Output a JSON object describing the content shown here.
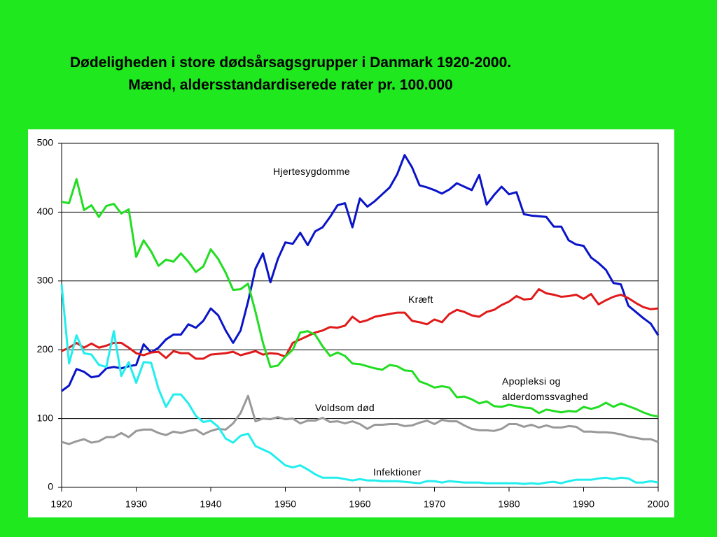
{
  "chart_data": {
    "type": "line",
    "title": "Dødeligheden i store dødsårsagsgrupper i Danmark 1920-2000. Mænd, aldersstandardiserede rater pr. 100.000",
    "x": [
      1920,
      1921,
      1922,
      1923,
      1924,
      1925,
      1926,
      1927,
      1928,
      1929,
      1930,
      1931,
      1932,
      1933,
      1934,
      1935,
      1936,
      1937,
      1938,
      1939,
      1940,
      1941,
      1942,
      1943,
      1944,
      1945,
      1946,
      1947,
      1948,
      1949,
      1950,
      1951,
      1952,
      1953,
      1954,
      1955,
      1956,
      1957,
      1958,
      1959,
      1960,
      1961,
      1962,
      1963,
      1964,
      1965,
      1966,
      1967,
      1968,
      1969,
      1970,
      1971,
      1972,
      1973,
      1974,
      1975,
      1976,
      1977,
      1978,
      1979,
      1980,
      1981,
      1982,
      1983,
      1984,
      1985,
      1986,
      1987,
      1988,
      1989,
      1990,
      1991,
      1992,
      1993,
      1994,
      1995,
      1996,
      1997,
      1998,
      1999,
      2000
    ],
    "series": [
      {
        "name": "Hjertesygdomme",
        "color": "#0a14c8",
        "values": [
          140,
          148,
          172,
          168,
          160,
          162,
          173,
          175,
          173,
          176,
          178,
          208,
          196,
          203,
          215,
          222,
          222,
          237,
          232,
          242,
          260,
          250,
          228,
          210,
          228,
          270,
          318,
          340,
          298,
          332,
          356,
          354,
          370,
          352,
          372,
          378,
          393,
          410,
          413,
          378,
          420,
          408,
          416,
          426,
          436,
          455,
          483,
          465,
          439,
          436,
          432,
          427,
          433,
          442,
          437,
          432,
          454,
          411,
          425,
          437,
          426,
          429,
          397,
          395,
          394,
          393,
          379,
          379,
          359,
          353,
          351,
          334,
          326,
          316,
          297,
          295,
          264,
          255,
          246,
          238,
          221
        ]
      },
      {
        "name": "Kræft",
        "color": "#e01a1a",
        "values": [
          198,
          203,
          210,
          203,
          209,
          203,
          206,
          210,
          210,
          203,
          195,
          192,
          196,
          197,
          188,
          198,
          195,
          195,
          187,
          187,
          193,
          194,
          195,
          197,
          192,
          195,
          198,
          193,
          195,
          194,
          190,
          210,
          215,
          220,
          225,
          228,
          233,
          232,
          235,
          248,
          240,
          243,
          248,
          250,
          252,
          254,
          254,
          242,
          240,
          237,
          244,
          240,
          252,
          258,
          255,
          250,
          248,
          255,
          258,
          265,
          270,
          278,
          273,
          274,
          288,
          282,
          280,
          277,
          278,
          280,
          274,
          281,
          266,
          272,
          277,
          280,
          275,
          268,
          262,
          259,
          260
        ]
      },
      {
        "name": "Apopleksi og alderdomssvaghed",
        "color": "#22dd22",
        "values": [
          415,
          413,
          448,
          403,
          410,
          393,
          409,
          412,
          398,
          404,
          335,
          359,
          343,
          322,
          331,
          328,
          340,
          328,
          313,
          321,
          346,
          332,
          312,
          287,
          288,
          296,
          255,
          210,
          175,
          177,
          190,
          200,
          225,
          227,
          222,
          205,
          191,
          196,
          191,
          180,
          179,
          176,
          173,
          171,
          178,
          176,
          170,
          169,
          154,
          150,
          145,
          147,
          145,
          131,
          132,
          128,
          122,
          125,
          118,
          117,
          120,
          118,
          116,
          115,
          108,
          113,
          111,
          109,
          111,
          110,
          117,
          114,
          117,
          123,
          117,
          122,
          118,
          114,
          109,
          105,
          103
        ]
      },
      {
        "name": "Voldsom død",
        "color": "#999999",
        "values": [
          66,
          63,
          67,
          70,
          65,
          67,
          73,
          73,
          79,
          73,
          82,
          84,
          84,
          79,
          76,
          81,
          79,
          82,
          84,
          77,
          82,
          85,
          84,
          93,
          108,
          133,
          96,
          100,
          99,
          102,
          99,
          100,
          93,
          97,
          97,
          101,
          95,
          96,
          93,
          96,
          92,
          85,
          91,
          91,
          92,
          92,
          89,
          90,
          94,
          97,
          92,
          98,
          96,
          96,
          90,
          85,
          83,
          83,
          82,
          85,
          92,
          92,
          88,
          91,
          87,
          90,
          87,
          87,
          89,
          88,
          81,
          81,
          80,
          80,
          79,
          77,
          74,
          72,
          70,
          70,
          66
        ]
      },
      {
        "name": "Infektioner",
        "color": "#22eeee",
        "values": [
          295,
          180,
          221,
          195,
          193,
          178,
          175,
          227,
          162,
          182,
          152,
          182,
          181,
          143,
          117,
          135,
          135,
          122,
          104,
          95,
          97,
          88,
          71,
          65,
          75,
          78,
          60,
          55,
          50,
          41,
          32,
          29,
          32,
          26,
          19,
          14,
          14,
          14,
          12,
          10,
          12,
          10,
          10,
          9,
          9,
          9,
          8,
          7,
          6,
          9,
          9,
          7,
          9,
          8,
          7,
          7,
          7,
          6,
          6,
          6,
          6,
          6,
          5,
          6,
          5,
          7,
          8,
          6,
          9,
          11,
          11,
          11,
          13,
          14,
          12,
          14,
          13,
          7,
          7,
          9,
          7
        ]
      }
    ],
    "xlim": [
      1920,
      2000
    ],
    "xticks": [
      1920,
      1930,
      1940,
      1950,
      1960,
      1970,
      1980,
      1990,
      2000
    ],
    "ylim": [
      0,
      500
    ],
    "yticks": [
      0,
      100,
      200,
      300,
      400,
      500
    ],
    "grid": true
  }
}
